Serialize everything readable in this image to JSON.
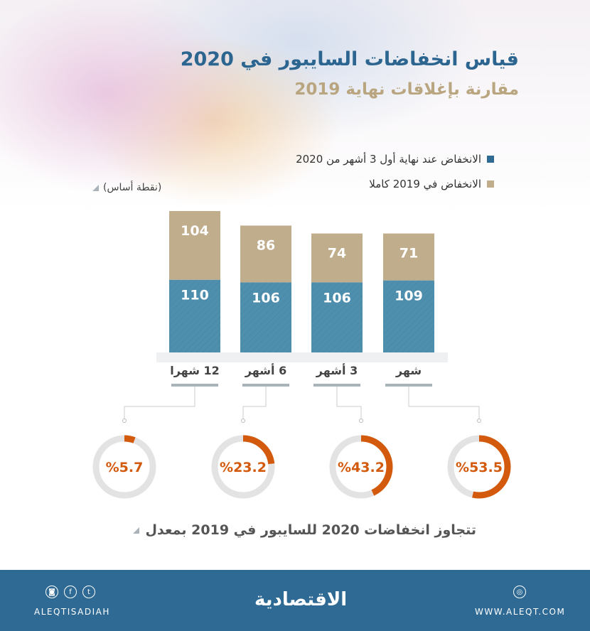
{
  "header": {
    "title": "قياس انخفاضات السايبور في 2020",
    "subtitle": "مقارنة بإغلاقات نهاية 2019",
    "unit": "(نقطة أساس)"
  },
  "chart_data": {
    "type": "bar",
    "stacked": true,
    "direction": "rtl",
    "categories": [
      "شهر",
      "3 أشهر",
      "6 أشهر",
      "12 شهرا"
    ],
    "series": [
      {
        "name": "الانخفاض عند نهاية أول 3 أشهر من 2020",
        "values": [
          109,
          106,
          106,
          110
        ],
        "color": "#4f8fae"
      },
      {
        "name": "الانخفاض في 2019 كاملا",
        "values": [
          71,
          74,
          86,
          104
        ],
        "color": "#c0ad8c"
      }
    ],
    "legend": "top-right",
    "grid": false
  },
  "ratio": {
    "caption": "تتجاوز انخفاضات 2020 للسايبور في 2019 بمعدل",
    "values": [
      53.5,
      43.2,
      23.2,
      5.7
    ],
    "labels": [
      "%53.5",
      "%43.2",
      "%23.2",
      "%5.7"
    ],
    "color": "#d35a0c",
    "track": "#e3e3e3"
  },
  "footer": {
    "logo": "الاقتصادية",
    "website": "WWW.ALEQT.COM",
    "handle": "ALEQTISADIAH",
    "icons": [
      "dribbble-icon",
      "instagram-icon",
      "facebook-icon",
      "twitter-icon"
    ]
  }
}
